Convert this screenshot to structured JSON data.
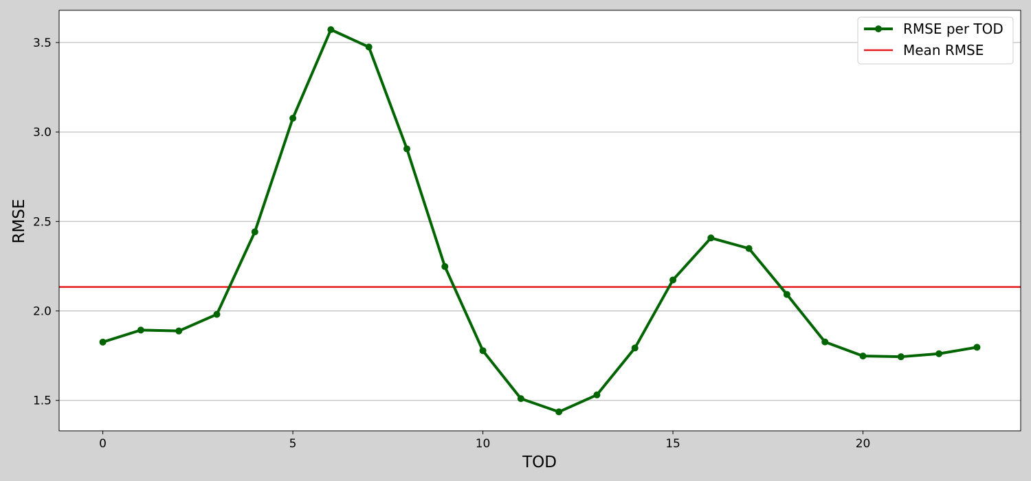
{
  "chart_data": {
    "type": "line",
    "title": "",
    "xlabel": "TOD",
    "ylabel": "RMSE",
    "xlim": [
      -1.15,
      24.15
    ],
    "ylim": [
      1.33,
      3.68
    ],
    "xticks": [
      0,
      5,
      10,
      15,
      20
    ],
    "yticks": [
      1.5,
      2.0,
      2.5,
      3.0,
      3.5
    ],
    "ytick_labels": [
      "1.5",
      "2.0",
      "2.5",
      "3.0",
      "3.5"
    ],
    "grid": "y",
    "legend_position": "top-right",
    "x": [
      0,
      1,
      2,
      3,
      4,
      5,
      6,
      7,
      8,
      9,
      10,
      11,
      12,
      13,
      14,
      15,
      16,
      17,
      18,
      19,
      20,
      21,
      22,
      23
    ],
    "series": [
      {
        "name": "RMSE per TOD",
        "color": "#006400",
        "marker": "circle",
        "values": [
          1.826,
          1.893,
          1.888,
          1.981,
          2.442,
          3.077,
          3.572,
          3.475,
          2.906,
          2.248,
          1.778,
          1.51,
          1.436,
          1.531,
          1.793,
          2.173,
          2.408,
          2.349,
          2.092,
          1.827,
          1.748,
          1.744,
          1.761,
          1.797
        ]
      }
    ],
    "hlines": [
      {
        "name": "Mean RMSE",
        "value": 2.134,
        "color": "#e31a1c"
      }
    ]
  }
}
